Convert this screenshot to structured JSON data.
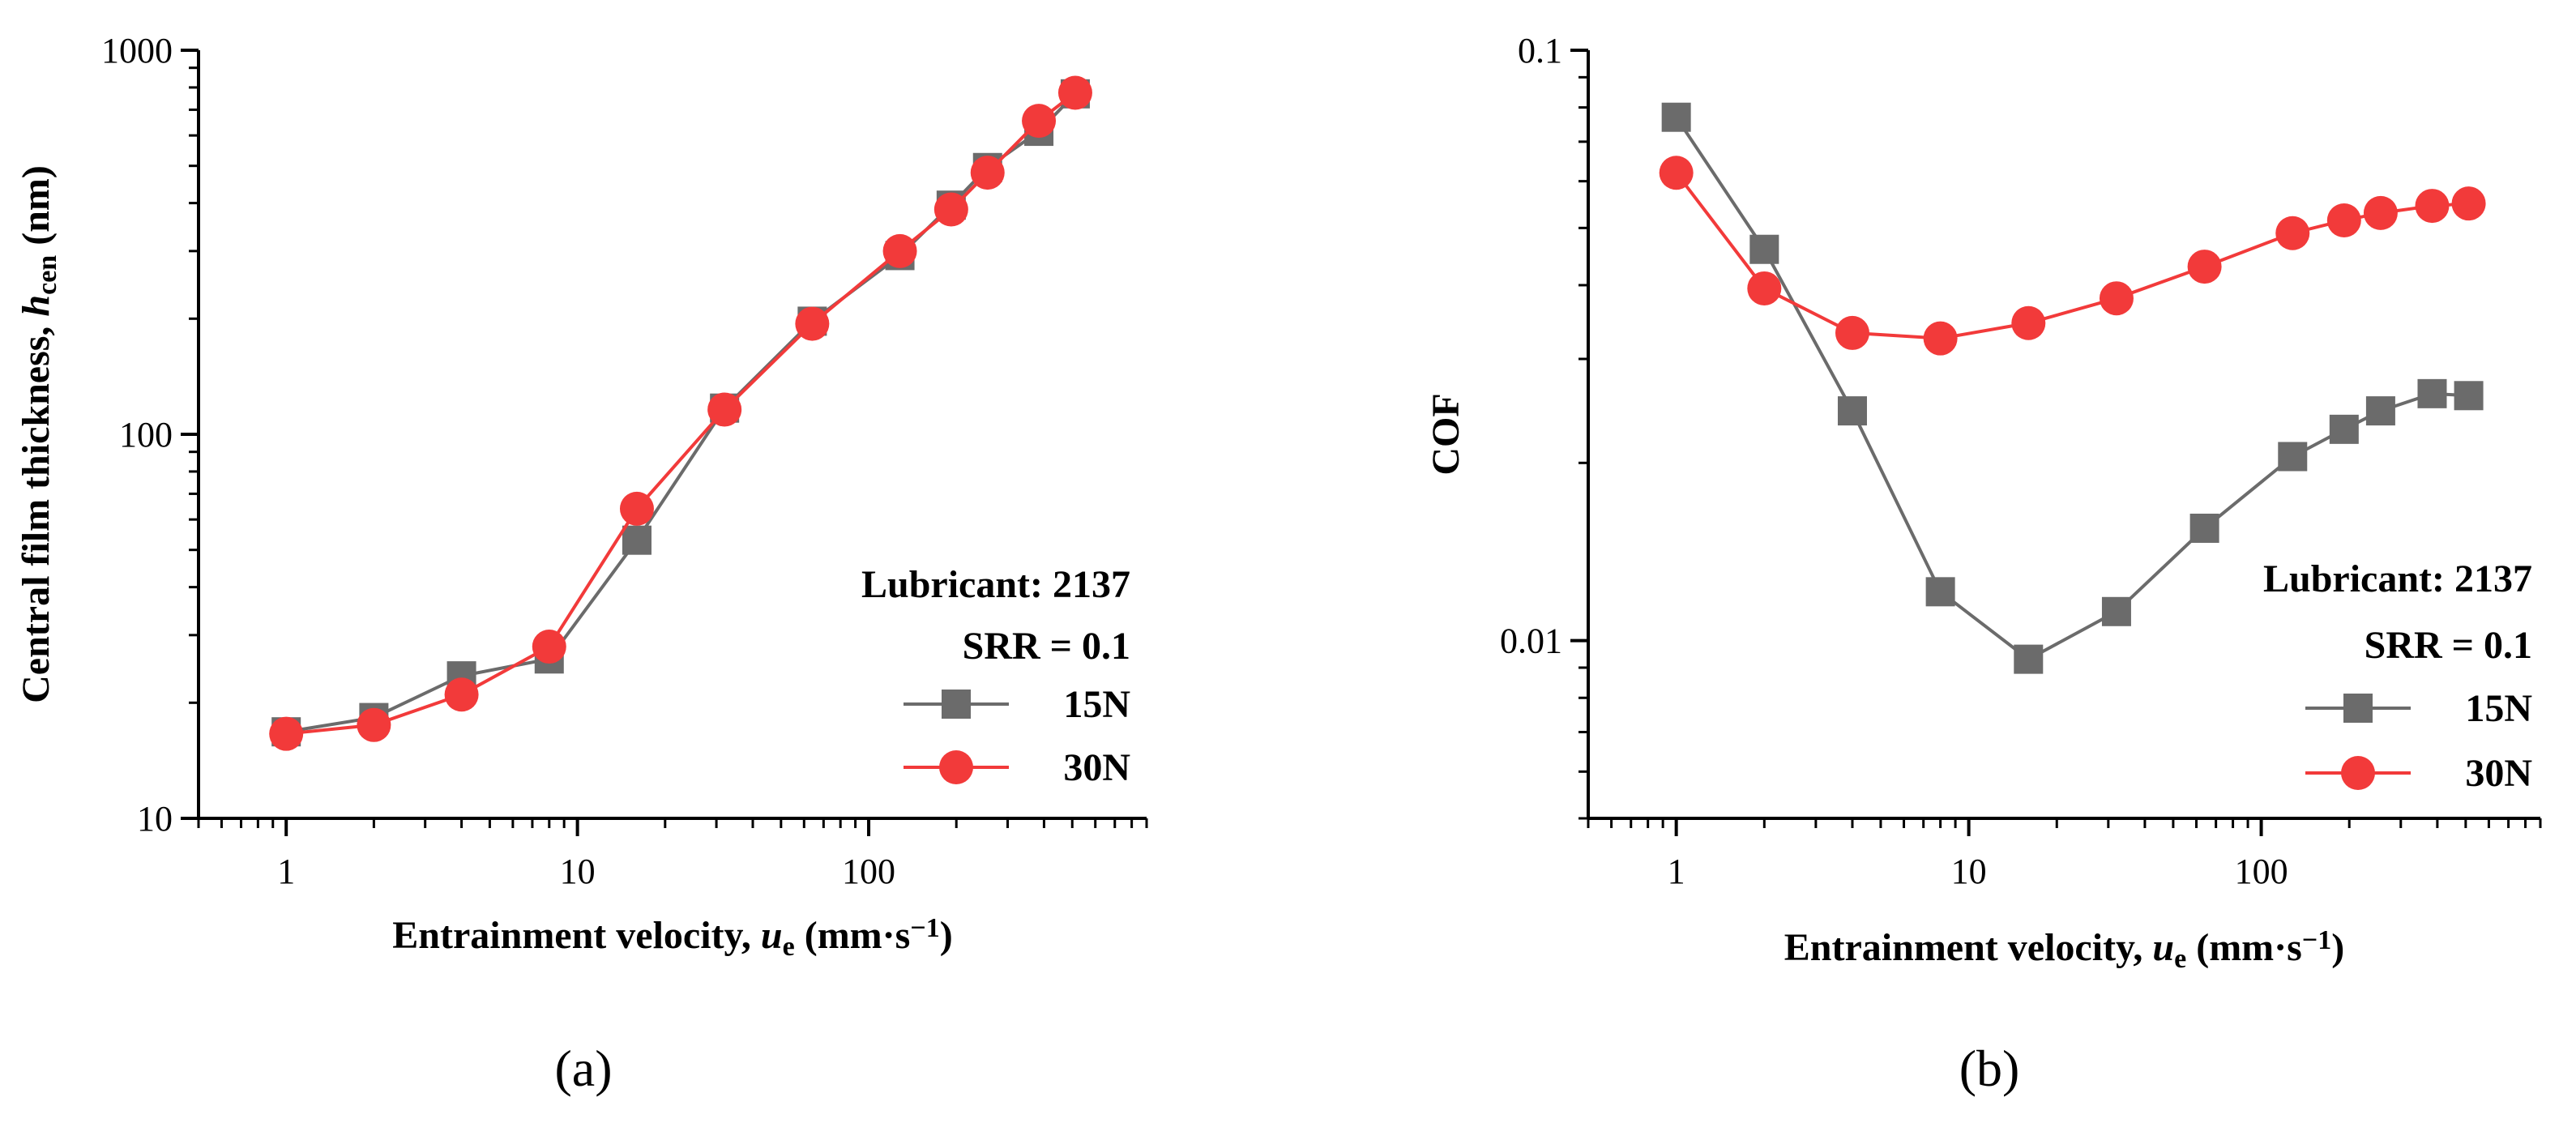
{
  "chart_data": [
    {
      "type": "line",
      "panel_label": "(a)",
      "xscale": "log",
      "yscale": "log",
      "xlim": [
        0.5,
        900
      ],
      "ylim": [
        10,
        1000
      ],
      "xticks": [
        1,
        10,
        100
      ],
      "xtick_labels": [
        "1",
        "10",
        "100"
      ],
      "yticks": [
        10,
        100,
        1000
      ],
      "ytick_labels": [
        "10",
        "100",
        "1000"
      ],
      "xlabel_parts": [
        "Entrainment velocity, ",
        "u",
        "e",
        " (mm·s",
        "−1",
        ")"
      ],
      "ylabel_parts": [
        "Central film thickness, ",
        "h",
        "cen",
        " (nm)"
      ],
      "annotations": [
        "Lubricant: 2137",
        "SRR = 0.1"
      ],
      "legend_position": "bottom-right",
      "x": [
        1,
        2,
        4,
        8,
        16,
        32,
        64,
        128,
        192,
        256,
        384,
        512
      ],
      "series": [
        {
          "name": "15N",
          "marker": "square",
          "color": "#6b6b6b",
          "values": [
            16.8,
            18.3,
            23.5,
            26,
            53,
            117,
            197,
            292,
            395,
            495,
            615,
            770
          ]
        },
        {
          "name": "30N",
          "marker": "circle",
          "color": "#f23a3a",
          "values": [
            16.6,
            17.5,
            21,
            28,
            64,
            116,
            194,
            300,
            385,
            480,
            655,
            775
          ]
        }
      ]
    },
    {
      "type": "line",
      "panel_label": "(b)",
      "xscale": "log",
      "yscale": "log",
      "xlim": [
        0.5,
        900
      ],
      "ylim": [
        0.005,
        0.1
      ],
      "xticks": [
        1,
        10,
        100
      ],
      "xtick_labels": [
        "1",
        "10",
        "100"
      ],
      "yticks": [
        0.01,
        0.1
      ],
      "ytick_labels": [
        "0.01",
        "0.1"
      ],
      "xlabel_parts": [
        "Entrainment velocity, ",
        "u",
        "e",
        " (mm·s",
        "−1",
        ")"
      ],
      "ylabel_parts": [
        "COF"
      ],
      "annotations": [
        "Lubricant: 2137",
        "SRR = 0.1"
      ],
      "legend_position": "bottom-right",
      "x": [
        1,
        2,
        4,
        8,
        16,
        32,
        64,
        128,
        192,
        256,
        384,
        512
      ],
      "series": [
        {
          "name": "15N",
          "marker": "square",
          "color": "#6b6b6b",
          "values": [
            0.077,
            0.046,
            0.0245,
            0.0121,
            0.0093,
            0.0112,
            0.0155,
            0.0205,
            0.0228,
            0.0245,
            0.0262,
            0.026
          ]
        },
        {
          "name": "30N",
          "marker": "circle",
          "color": "#f23a3a",
          "values": [
            0.062,
            0.0395,
            0.0332,
            0.0325,
            0.0345,
            0.038,
            0.043,
            0.049,
            0.0515,
            0.053,
            0.0545,
            0.055
          ]
        }
      ]
    }
  ]
}
